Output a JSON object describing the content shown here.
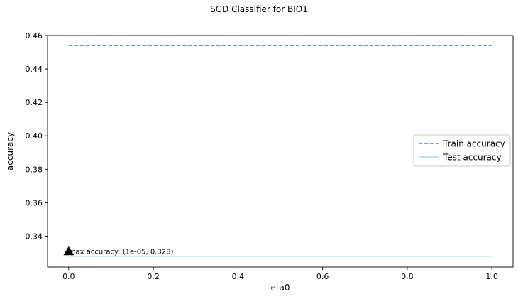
{
  "chart_data": {
    "type": "line",
    "title": "SGD Classifier for BIO1",
    "xlabel": "eta0",
    "ylabel": "accuracy",
    "xlim": [
      -0.05,
      1.05
    ],
    "ylim": [
      0.3215,
      0.46
    ],
    "xticks": [
      0.0,
      0.2,
      0.4,
      0.6,
      0.8,
      1.0
    ],
    "xtick_labels": [
      "0.0",
      "0.2",
      "0.4",
      "0.6",
      "0.8",
      "1.0"
    ],
    "yticks": [
      0.34,
      0.36,
      0.38,
      0.4,
      0.42,
      0.44,
      0.46
    ],
    "ytick_labels": [
      "0.34",
      "0.36",
      "0.38",
      "0.40",
      "0.42",
      "0.44",
      "0.46"
    ],
    "grid": false,
    "legend_position": "center-right",
    "x": [
      0.0,
      1.0
    ],
    "series": [
      {
        "name": "Train accuracy",
        "values": [
          0.454,
          0.454
        ],
        "style": "dashed",
        "color": "#4f86c6"
      },
      {
        "name": "Test accuracy",
        "values": [
          0.328,
          0.328
        ],
        "style": "solid",
        "color": "#add8e6"
      }
    ],
    "annotation": {
      "text": "max accuracy: (1e-05, 0.328)",
      "x": 0.0,
      "y": 0.328,
      "marker": "triangle-up",
      "marker_color": "#000000"
    }
  }
}
